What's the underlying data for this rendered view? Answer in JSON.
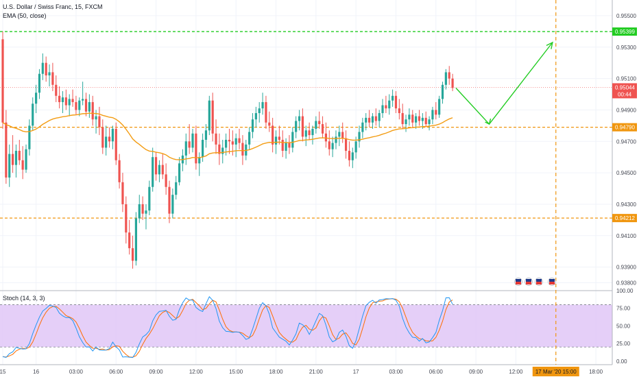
{
  "chart_data": [
    {
      "type": "candlestick",
      "title": "U.S. Dollar / Swiss Franc, 15, FXCM",
      "indicator": "EMA (50, close)",
      "ylim": [
        0.9375,
        0.956
      ],
      "y_ticks": [
        0.955,
        0.953,
        0.951,
        0.949,
        0.947,
        0.945,
        0.943,
        0.941,
        0.939,
        0.938
      ],
      "y_tick_labels": [
        "0.95500",
        "0.95300",
        "0.95100",
        "0.94900",
        "0.94700",
        "0.94500",
        "0.94300",
        "0.94100",
        "0.93900",
        "0.93800"
      ],
      "x_tick_labels": [
        "15",
        "16",
        "03:00",
        "06:00",
        "09:00",
        "12:00",
        "15:00",
        "18:00",
        "21:00",
        "17",
        "03:00",
        "06:00",
        "09:00",
        "12:00",
        "15:00",
        "18:00"
      ],
      "x_ticks_bar_index": [
        0,
        10,
        22,
        34,
        46,
        58,
        70,
        82,
        94,
        106,
        118,
        130,
        142,
        154,
        166,
        178
      ],
      "horizontal_lines": [
        {
          "value": 0.95399,
          "label": "0.95399",
          "color": "#22cc22"
        },
        {
          "value": 0.9479,
          "label": "0.94790",
          "color": "#f0960f"
        },
        {
          "value": 0.94212,
          "label": "0.94212",
          "color": "#f0960f"
        }
      ],
      "last_price": {
        "value": 0.95044,
        "label": "0.95044",
        "countdown": "00:44",
        "color": "#ef5350"
      },
      "vertical_marker": {
        "bar_index": 166,
        "label": "17 Mar '20  15:00",
        "color": "#f0960f"
      },
      "projection": {
        "points": [
          [
            136,
            0.9504
          ],
          [
            146,
            0.9481
          ],
          [
            165,
            0.9533
          ]
        ],
        "color": "#22cc22"
      },
      "candles": [
        [
          0.9535,
          0.954,
          0.9478,
          0.9482
        ],
        [
          0.9482,
          0.949,
          0.9443,
          0.9447
        ],
        [
          0.9447,
          0.9468,
          0.9441,
          0.9462
        ],
        [
          0.9462,
          0.9474,
          0.945,
          0.9455
        ],
        [
          0.9455,
          0.9468,
          0.9447,
          0.9464
        ],
        [
          0.9464,
          0.9471,
          0.9455,
          0.9458
        ],
        [
          0.9458,
          0.9467,
          0.9446,
          0.9452
        ],
        [
          0.9452,
          0.9468,
          0.945,
          0.9465
        ],
        [
          0.9465,
          0.9484,
          0.9461,
          0.948
        ],
        [
          0.948,
          0.9498,
          0.9477,
          0.9494
        ],
        [
          0.9494,
          0.9506,
          0.9488,
          0.9501
        ],
        [
          0.9501,
          0.9516,
          0.9497,
          0.9513
        ],
        [
          0.9513,
          0.9526,
          0.9509,
          0.952
        ],
        [
          0.952,
          0.9524,
          0.9508,
          0.9512
        ],
        [
          0.9512,
          0.9519,
          0.9505,
          0.9514
        ],
        [
          0.9514,
          0.952,
          0.9502,
          0.9506
        ],
        [
          0.9506,
          0.9512,
          0.9495,
          0.9499
        ],
        [
          0.9499,
          0.9505,
          0.9491,
          0.9495
        ],
        [
          0.9495,
          0.9502,
          0.9488,
          0.9498
        ],
        [
          0.9498,
          0.9503,
          0.949,
          0.9493
        ],
        [
          0.9493,
          0.95,
          0.9486,
          0.9497
        ],
        [
          0.9497,
          0.9503,
          0.9492,
          0.9495
        ],
        [
          0.9495,
          0.9499,
          0.9487,
          0.949
        ],
        [
          0.949,
          0.9498,
          0.9486,
          0.9496
        ],
        [
          0.9496,
          0.9508,
          0.9493,
          0.9497
        ],
        [
          0.9497,
          0.9501,
          0.9486,
          0.9489
        ],
        [
          0.9489,
          0.95,
          0.9485,
          0.9495
        ],
        [
          0.9495,
          0.9499,
          0.948,
          0.9484
        ],
        [
          0.9484,
          0.949,
          0.9475,
          0.9486
        ],
        [
          0.9486,
          0.9492,
          0.9474,
          0.9479
        ],
        [
          0.9479,
          0.9484,
          0.9462,
          0.9466
        ],
        [
          0.9466,
          0.948,
          0.9461,
          0.9473
        ],
        [
          0.9473,
          0.9479,
          0.9466,
          0.947
        ],
        [
          0.947,
          0.948,
          0.9465,
          0.9478
        ],
        [
          0.9478,
          0.9482,
          0.9455,
          0.9458
        ],
        [
          0.9458,
          0.9462,
          0.944,
          0.9444
        ],
        [
          0.9444,
          0.945,
          0.9425,
          0.943
        ],
        [
          0.943,
          0.9435,
          0.9405,
          0.9412
        ],
        [
          0.9412,
          0.942,
          0.9398,
          0.9402
        ],
        [
          0.9402,
          0.941,
          0.9389,
          0.9394
        ],
        [
          0.9394,
          0.9425,
          0.9391,
          0.9421
        ],
        [
          0.9421,
          0.9436,
          0.9418,
          0.943
        ],
        [
          0.943,
          0.9435,
          0.942,
          0.9424
        ],
        [
          0.9424,
          0.943,
          0.9414,
          0.9426
        ],
        [
          0.9426,
          0.9445,
          0.9423,
          0.9441
        ],
        [
          0.9441,
          0.9466,
          0.9438,
          0.946
        ],
        [
          0.946,
          0.9463,
          0.9445,
          0.9449
        ],
        [
          0.9449,
          0.9458,
          0.9444,
          0.9455
        ],
        [
          0.9455,
          0.9462,
          0.9446,
          0.9449
        ],
        [
          0.9449,
          0.9456,
          0.9436,
          0.9441
        ],
        [
          0.9441,
          0.9445,
          0.9418,
          0.9424
        ],
        [
          0.9424,
          0.944,
          0.9421,
          0.9436
        ],
        [
          0.9436,
          0.9448,
          0.9433,
          0.9444
        ],
        [
          0.9444,
          0.946,
          0.9442,
          0.9456
        ],
        [
          0.9456,
          0.9465,
          0.9451,
          0.9461
        ],
        [
          0.9461,
          0.9475,
          0.9455,
          0.947
        ],
        [
          0.947,
          0.9481,
          0.9462,
          0.9466
        ],
        [
          0.9466,
          0.9478,
          0.9463,
          0.9475
        ],
        [
          0.9475,
          0.948,
          0.9452,
          0.9456
        ],
        [
          0.9456,
          0.9463,
          0.9448,
          0.946
        ],
        [
          0.946,
          0.9475,
          0.9457,
          0.9471
        ],
        [
          0.9471,
          0.9481,
          0.9466,
          0.9477
        ],
        [
          0.9477,
          0.9499,
          0.9474,
          0.9496
        ],
        [
          0.9496,
          0.9501,
          0.947,
          0.9475
        ],
        [
          0.9475,
          0.9484,
          0.9462,
          0.9468
        ],
        [
          0.9468,
          0.9475,
          0.9455,
          0.9462
        ],
        [
          0.9462,
          0.9471,
          0.9456,
          0.9466
        ],
        [
          0.9466,
          0.9475,
          0.9461,
          0.9471
        ],
        [
          0.9471,
          0.9478,
          0.9462,
          0.947
        ],
        [
          0.947,
          0.9477,
          0.9461,
          0.9468
        ],
        [
          0.9468,
          0.9475,
          0.946,
          0.9472
        ],
        [
          0.9472,
          0.9478,
          0.9465,
          0.9469
        ],
        [
          0.9469,
          0.9474,
          0.9455,
          0.9461
        ],
        [
          0.9461,
          0.9471,
          0.9458,
          0.9468
        ],
        [
          0.9468,
          0.9479,
          0.9465,
          0.9476
        ],
        [
          0.9476,
          0.9488,
          0.9472,
          0.9484
        ],
        [
          0.9484,
          0.9492,
          0.9479,
          0.9488
        ],
        [
          0.9488,
          0.9495,
          0.9482,
          0.9491
        ],
        [
          0.9491,
          0.9501,
          0.9487,
          0.9495
        ],
        [
          0.9495,
          0.9499,
          0.9478,
          0.9482
        ],
        [
          0.9482,
          0.9489,
          0.9476,
          0.948
        ],
        [
          0.948,
          0.9485,
          0.9463,
          0.9468
        ],
        [
          0.9468,
          0.9477,
          0.9462,
          0.9473
        ],
        [
          0.9473,
          0.948,
          0.9468,
          0.9471
        ],
        [
          0.9471,
          0.9477,
          0.946,
          0.9464
        ],
        [
          0.9464,
          0.9472,
          0.9459,
          0.9469
        ],
        [
          0.9469,
          0.9474,
          0.9462,
          0.9466
        ],
        [
          0.9466,
          0.9479,
          0.9463,
          0.9476
        ],
        [
          0.9476,
          0.9486,
          0.9472,
          0.9483
        ],
        [
          0.9483,
          0.949,
          0.9477,
          0.9486
        ],
        [
          0.9486,
          0.9491,
          0.947,
          0.9473
        ],
        [
          0.9473,
          0.948,
          0.9467,
          0.9477
        ],
        [
          0.9477,
          0.9482,
          0.9471,
          0.9474
        ],
        [
          0.9474,
          0.948,
          0.9468,
          0.9478
        ],
        [
          0.9478,
          0.9486,
          0.9475,
          0.9483
        ],
        [
          0.9483,
          0.9489,
          0.9478,
          0.9481
        ],
        [
          0.9481,
          0.9486,
          0.9472,
          0.9475
        ],
        [
          0.9475,
          0.9482,
          0.9466,
          0.947
        ],
        [
          0.947,
          0.9477,
          0.9461,
          0.9465
        ],
        [
          0.9465,
          0.9473,
          0.946,
          0.9469
        ],
        [
          0.9469,
          0.9477,
          0.9465,
          0.9473
        ],
        [
          0.9473,
          0.948,
          0.9467,
          0.9476
        ],
        [
          0.9476,
          0.9482,
          0.9469,
          0.9472
        ],
        [
          0.9472,
          0.9477,
          0.9459,
          0.9464
        ],
        [
          0.9464,
          0.947,
          0.9454,
          0.9458
        ],
        [
          0.9458,
          0.9466,
          0.9453,
          0.9463
        ],
        [
          0.9463,
          0.9473,
          0.9459,
          0.947
        ],
        [
          0.947,
          0.948,
          0.9466,
          0.9476
        ],
        [
          0.9476,
          0.9485,
          0.9472,
          0.9482
        ],
        [
          0.9482,
          0.9488,
          0.9477,
          0.9485
        ],
        [
          0.9485,
          0.949,
          0.9479,
          0.9482
        ],
        [
          0.9482,
          0.9488,
          0.9478,
          0.9486
        ],
        [
          0.9486,
          0.9491,
          0.948,
          0.9483
        ],
        [
          0.9483,
          0.949,
          0.9479,
          0.9488
        ],
        [
          0.9488,
          0.9497,
          0.9485,
          0.9493
        ],
        [
          0.9493,
          0.9499,
          0.9488,
          0.9491
        ],
        [
          0.9491,
          0.95,
          0.9487,
          0.9496
        ],
        [
          0.9496,
          0.9503,
          0.9492,
          0.9499
        ],
        [
          0.9499,
          0.9502,
          0.9488,
          0.9491
        ],
        [
          0.9491,
          0.9497,
          0.9484,
          0.9488
        ],
        [
          0.9488,
          0.9494,
          0.9478,
          0.9481
        ],
        [
          0.9481,
          0.9487,
          0.9476,
          0.9484
        ],
        [
          0.9484,
          0.9491,
          0.948,
          0.9487
        ],
        [
          0.9487,
          0.949,
          0.9479,
          0.9482
        ],
        [
          0.9482,
          0.9488,
          0.9478,
          0.9486
        ],
        [
          0.9486,
          0.949,
          0.948,
          0.9483
        ],
        [
          0.9483,
          0.9488,
          0.9478,
          0.9485
        ],
        [
          0.9485,
          0.9489,
          0.9479,
          0.9481
        ],
        [
          0.9481,
          0.9486,
          0.9477,
          0.9484
        ],
        [
          0.9484,
          0.9492,
          0.9481,
          0.949
        ],
        [
          0.949,
          0.9495,
          0.9484,
          0.9487
        ],
        [
          0.9487,
          0.9499,
          0.9485,
          0.9497
        ],
        [
          0.9497,
          0.9508,
          0.9494,
          0.9506
        ],
        [
          0.9506,
          0.9516,
          0.9503,
          0.9514
        ],
        [
          0.9514,
          0.9518,
          0.9506,
          0.951
        ],
        [
          0.951,
          0.9513,
          0.9502,
          0.9504
        ]
      ]
    },
    {
      "type": "line",
      "title": "Stoch (14, 3, 3)",
      "ylim": [
        -5,
        100
      ],
      "y_ticks": [
        0,
        25,
        50,
        75,
        100
      ],
      "y_tick_labels": [
        "0.00",
        "25.00",
        "50.00",
        "75.00",
        "100.00"
      ],
      "bands": [
        20,
        80
      ],
      "series": [
        {
          "color": "#2196f3"
        },
        {
          "color": "#ff6d00"
        }
      ]
    }
  ]
}
